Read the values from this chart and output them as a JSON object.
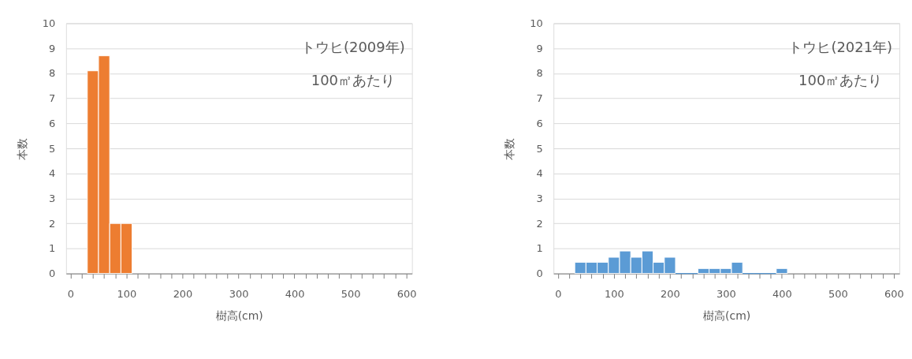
{
  "chart_data": [
    {
      "type": "histogram",
      "xlabel": "樹高(cm)",
      "ylabel": "本数",
      "annotations": [
        "トウヒ(2009年)",
        "100㎡あたり"
      ],
      "bins": [
        30,
        50,
        70,
        90,
        110
      ],
      "values": [
        8.1,
        8.7,
        2,
        2
      ],
      "color": "#ed7d31",
      "xlim": [
        -8,
        610
      ],
      "xticks": [
        0,
        {
          "value": 20,
          "label": null
        },
        {
          "value": 40,
          "label": null
        },
        {
          "value": 60,
          "label": null
        },
        {
          "value": 80,
          "label": null
        },
        100,
        {
          "value": 120,
          "label": null
        },
        {
          "value": 140,
          "label": null
        },
        {
          "value": 160,
          "label": null
        },
        {
          "value": 180,
          "label": null
        },
        200,
        {
          "value": 220,
          "label": null
        },
        {
          "value": 240,
          "label": null
        },
        {
          "value": 260,
          "label": null
        },
        {
          "value": 280,
          "label": null
        },
        300,
        {
          "value": 320,
          "label": null
        },
        {
          "value": 340,
          "label": null
        },
        {
          "value": 360,
          "label": null
        },
        {
          "value": 380,
          "label": null
        },
        400,
        {
          "value": 420,
          "label": null
        },
        {
          "value": 440,
          "label": null
        },
        {
          "value": 460,
          "label": null
        },
        {
          "value": 480,
          "label": null
        },
        500,
        {
          "value": 520,
          "label": null
        },
        {
          "value": 540,
          "label": null
        },
        {
          "value": 560,
          "label": null
        },
        {
          "value": 580,
          "label": null
        },
        600
      ],
      "ylim": [
        0,
        10
      ],
      "yticks": [
        0,
        1,
        2,
        3,
        4,
        5,
        6,
        7,
        8,
        9,
        10
      ],
      "grid": "y",
      "legend": false
    },
    {
      "type": "histogram",
      "xlabel": "樹高(cm)",
      "ylabel": "本数",
      "annotations": [
        "トウヒ(2021年)",
        "100㎡あたり"
      ],
      "bins": [
        30,
        50,
        70,
        90,
        110,
        130,
        150,
        170,
        190,
        210,
        230,
        250,
        270,
        290,
        310,
        330,
        350,
        370,
        390,
        410
      ],
      "values": [
        0.45,
        0.45,
        0.45,
        0.65,
        0.9,
        0.65,
        0.9,
        0.45,
        0.65,
        0,
        0,
        0.2,
        0.2,
        0.2,
        0.45,
        0,
        0,
        0,
        0.2
      ],
      "color": "#5b9bd5",
      "xlim": [
        -8,
        610
      ],
      "xticks": [
        0,
        {
          "value": 20,
          "label": null
        },
        {
          "value": 40,
          "label": null
        },
        {
          "value": 60,
          "label": null
        },
        {
          "value": 80,
          "label": null
        },
        100,
        {
          "value": 120,
          "label": null
        },
        {
          "value": 140,
          "label": null
        },
        {
          "value": 160,
          "label": null
        },
        {
          "value": 180,
          "label": null
        },
        200,
        {
          "value": 220,
          "label": null
        },
        {
          "value": 240,
          "label": null
        },
        {
          "value": 260,
          "label": null
        },
        {
          "value": 280,
          "label": null
        },
        300,
        {
          "value": 320,
          "label": null
        },
        {
          "value": 340,
          "label": null
        },
        {
          "value": 360,
          "label": null
        },
        {
          "value": 380,
          "label": null
        },
        400,
        {
          "value": 420,
          "label": null
        },
        {
          "value": 440,
          "label": null
        },
        {
          "value": 460,
          "label": null
        },
        {
          "value": 480,
          "label": null
        },
        500,
        {
          "value": 520,
          "label": null
        },
        {
          "value": 540,
          "label": null
        },
        {
          "value": 560,
          "label": null
        },
        {
          "value": 580,
          "label": null
        },
        600
      ],
      "ylim": [
        0,
        10
      ],
      "yticks": [
        0,
        1,
        2,
        3,
        4,
        5,
        6,
        7,
        8,
        9,
        10
      ],
      "grid": "y",
      "legend": false
    }
  ]
}
